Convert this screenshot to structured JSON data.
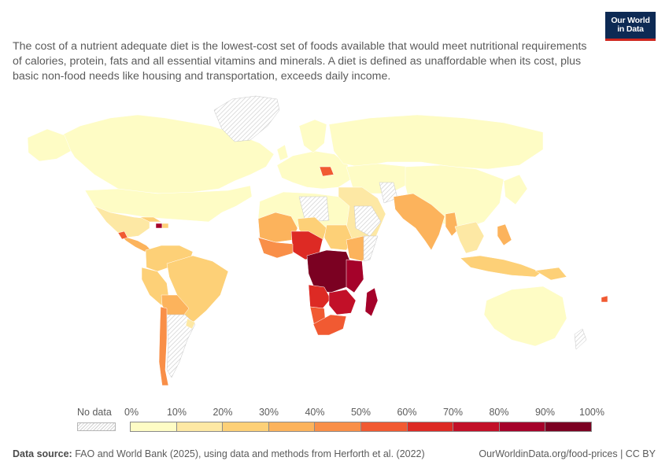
{
  "logo": {
    "line1": "Our World",
    "line2": "in Data"
  },
  "subtitle": "The cost of a nutrient adequate diet is the lowest-cost set of foods available that would meet nutritional requirements of calories, protein, fats and all essential vitamins and minerals. A diet is defined as unaffordable when its cost, plus basic non-food needs like housing and transportation, exceeds daily income.",
  "legend": {
    "no_data_label": "No data",
    "ticks": [
      "0%",
      "10%",
      "20%",
      "30%",
      "40%",
      "50%",
      "60%",
      "70%",
      "80%",
      "90%",
      "100%"
    ],
    "bin_colors": [
      "#fefcc5",
      "#fde8a4",
      "#fdd077",
      "#fcb35c",
      "#f98f48",
      "#f15a32",
      "#dd2a24",
      "#c21028",
      "#a5022a",
      "#7b0122"
    ],
    "no_data_color": "#e6e6e6"
  },
  "footer": {
    "source_label": "Data source:",
    "source_text": "FAO and World Bank (2025), using data and methods from Herforth et al. (2022)",
    "url_license": "OurWorldinData.org/food-prices | CC BY"
  }
}
